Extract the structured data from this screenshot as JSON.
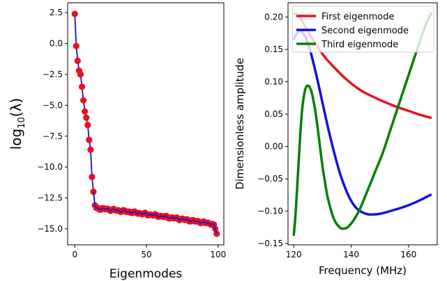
{
  "chart_data": [
    {
      "type": "scatter",
      "xlabel": "Eigenmodes",
      "ylabel_base": "log",
      "ylabel_sub": "10",
      "ylabel_rest": "(λ)",
      "xlim": [
        -5,
        104
      ],
      "ylim": [
        -16.3,
        3.3
      ],
      "xticks": [
        0,
        50,
        100
      ],
      "yticks": [
        2.5,
        0.0,
        -2.5,
        -5.0,
        -7.5,
        -10.0,
        -12.5,
        -15.0
      ],
      "ytick_labels": [
        "2.5",
        "0.0",
        "−2.5",
        "−5.0",
        "−7.5",
        "−10.0",
        "−12.5",
        "−15.0"
      ],
      "grid": false,
      "marker_color": "#e8101f",
      "line_color": "#1010e0",
      "head_points": [
        {
          "x": 0,
          "y": 2.4
        },
        {
          "x": 1,
          "y": -0.2
        },
        {
          "x": 2,
          "y": -1.4
        },
        {
          "x": 3,
          "y": -2.2
        },
        {
          "x": 4,
          "y": -2.5
        },
        {
          "x": 5,
          "y": -3.5
        },
        {
          "x": 6,
          "y": -4.6
        },
        {
          "x": 7,
          "y": -5.5
        },
        {
          "x": 8,
          "y": -6.0
        },
        {
          "x": 9,
          "y": -6.6
        },
        {
          "x": 10,
          "y": -7.8
        },
        {
          "x": 11,
          "y": -8.6
        },
        {
          "x": 12,
          "y": -10.8
        },
        {
          "x": 13,
          "y": -12.0
        },
        {
          "x": 14,
          "y": -13.1
        },
        {
          "x": 15,
          "y": -13.3
        }
      ],
      "plateau": {
        "x_start": 16,
        "x_end": 96,
        "y_start": -13.35,
        "y_end": -14.6
      },
      "tail_points": [
        {
          "x": 97,
          "y": -14.65
        },
        {
          "x": 98,
          "y": -15.0
        },
        {
          "x": 99,
          "y": -15.4
        }
      ]
    },
    {
      "type": "line",
      "xlabel": "Frequency (MHz)",
      "ylabel": "Dimensionless amplitude",
      "xlim": [
        118,
        170
      ],
      "ylim": [
        -0.152,
        0.222
      ],
      "xticks": [
        120,
        140,
        160
      ],
      "yticks": [
        0.2,
        0.15,
        0.1,
        0.05,
        0.0,
        -0.05,
        -0.1,
        -0.15
      ],
      "ytick_labels": [
        "0.20",
        "0.15",
        "0.10",
        "0.05",
        "0.00",
        "−0.05",
        "−0.10",
        "−0.15"
      ],
      "legend_position": "top-right",
      "grid": false,
      "series": [
        {
          "name": "First eigenmode",
          "color": "#e8101f",
          "x": [
            120,
            121,
            122,
            123,
            124,
            126,
            128,
            130,
            132,
            135,
            138,
            141,
            144,
            148,
            152,
            156,
            160,
            164,
            168
          ],
          "y": [
            0.205,
            0.204,
            0.2,
            0.193,
            0.185,
            0.17,
            0.156,
            0.143,
            0.132,
            0.118,
            0.105,
            0.094,
            0.085,
            0.076,
            0.068,
            0.061,
            0.055,
            0.049,
            0.044
          ]
        },
        {
          "name": "Second eigenmode",
          "color": "#1010e0",
          "x": [
            120,
            121,
            122,
            123,
            124,
            125,
            126,
            128,
            130,
            132,
            134,
            136,
            138,
            140,
            142,
            144,
            146,
            148,
            150,
            152,
            155,
            158,
            161,
            164,
            168
          ],
          "y": [
            0.165,
            0.174,
            0.178,
            0.176,
            0.17,
            0.158,
            0.144,
            0.108,
            0.068,
            0.028,
            -0.008,
            -0.04,
            -0.065,
            -0.084,
            -0.096,
            -0.102,
            -0.105,
            -0.105,
            -0.104,
            -0.102,
            -0.098,
            -0.094,
            -0.089,
            -0.083,
            -0.074
          ]
        },
        {
          "name": "Third eigenmode",
          "color": "#008000",
          "x": [
            120,
            120.7,
            121.5,
            122.3,
            123,
            124,
            125,
            126,
            127,
            128,
            129,
            130,
            131,
            132,
            134,
            136,
            137.5,
            139,
            141,
            143,
            145,
            148,
            151,
            154,
            157,
            160,
            163,
            166,
            168
          ],
          "y": [
            -0.138,
            -0.1,
            -0.04,
            0.02,
            0.06,
            0.088,
            0.094,
            0.087,
            0.068,
            0.04,
            0.005,
            -0.03,
            -0.058,
            -0.082,
            -0.112,
            -0.125,
            -0.127,
            -0.124,
            -0.113,
            -0.097,
            -0.076,
            -0.043,
            -0.01,
            0.03,
            0.07,
            0.11,
            0.15,
            0.188,
            0.207
          ]
        }
      ]
    }
  ]
}
